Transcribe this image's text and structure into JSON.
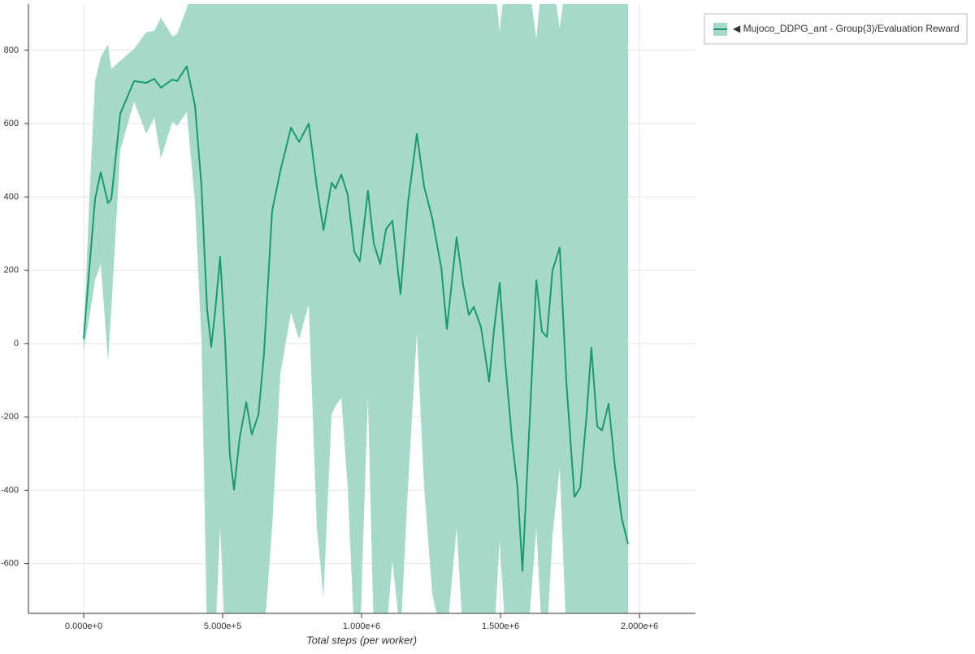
{
  "chart_data": {
    "type": "line",
    "xlabel": "Total steps (per worker)",
    "x": [
      0,
      20468,
      40935,
      61400,
      87700,
      99400,
      131600,
      181300,
      225000,
      254000,
      278000,
      319000,
      336000,
      371000,
      400600,
      424000,
      444000,
      459000,
      474000,
      491000,
      509000,
      526000,
      541000,
      561000,
      585000,
      605000,
      629000,
      649000,
      678000,
      708000,
      746000,
      775000,
      810000,
      839000,
      863000,
      892000,
      906000,
      927000,
      950000,
      974000,
      994000,
      1023000,
      1044000,
      1067000,
      1088000,
      1111000,
      1140000,
      1167000,
      1199000,
      1225000,
      1254000,
      1287000,
      1307000,
      1342000,
      1365000,
      1386000,
      1404000,
      1430000,
      1459000,
      1477000,
      1497000,
      1518000,
      1541000,
      1561000,
      1579000,
      1599000,
      1629000,
      1649000,
      1667000,
      1687000,
      1713000,
      1737000,
      1766000,
      1787000,
      1810000,
      1827000,
      1848000,
      1865000,
      1889000,
      1912000,
      1936000,
      1959000
    ],
    "series": [
      {
        "name": "◀ Mujoco_DDPG_ant - Group(3)/Evaluation Reward",
        "color": "#1a9a6c",
        "band_color": "#a6d9ca",
        "values": [
          13,
          206,
          394,
          467,
          383,
          394,
          627,
          716,
          711,
          722,
          698,
          720,
          716,
          756,
          649,
          428,
          95,
          -9,
          95,
          237,
          7,
          -304,
          -399,
          -259,
          -160,
          -248,
          -193,
          -27,
          361,
          472,
          589,
          550,
          600,
          428,
          310,
          439,
          423,
          461,
          406,
          250,
          224,
          417,
          273,
          217,
          312,
          335,
          135,
          383,
          572,
          428,
          343,
          206,
          40,
          290,
          162,
          78,
          100,
          44,
          -104,
          40,
          166,
          -60,
          -259,
          -392,
          -620,
          -304,
          173,
          33,
          18,
          199,
          262,
          -104,
          -419,
          -392,
          -193,
          -11,
          -226,
          -237,
          -164,
          -337,
          -476,
          -547
        ],
        "lower": [
          -20,
          73,
          173,
          217,
          -49,
          95,
          527,
          660,
          572,
          616,
          505,
          605,
          594,
          632,
          383,
          7,
          -800,
          -800,
          -800,
          -499,
          -800,
          -800,
          -800,
          -800,
          -800,
          -800,
          -800,
          -800,
          -503,
          -82,
          84,
          11,
          106,
          -503,
          -691,
          -193,
          -171,
          -148,
          -392,
          -800,
          -800,
          -148,
          -800,
          -800,
          -800,
          -592,
          -800,
          -392,
          29,
          -392,
          -680,
          -800,
          -800,
          -503,
          -800,
          -800,
          -800,
          -800,
          -800,
          -800,
          -536,
          -800,
          -800,
          -800,
          -800,
          -800,
          -503,
          -800,
          -800,
          -525,
          -337,
          -800,
          -800,
          -800,
          -800,
          -800,
          -800,
          -800,
          -800,
          -800,
          -800,
          -800
        ],
        "upper": [
          10,
          400,
          716,
          782,
          816,
          749,
          771,
          804,
          849,
          853,
          889,
          838,
          844,
          915,
          1000,
          1000,
          1000,
          1000,
          1000,
          1000,
          1000,
          1000,
          1000,
          1000,
          1000,
          1000,
          1000,
          1000,
          1000,
          1000,
          1000,
          1000,
          1000,
          1000,
          1000,
          1000,
          1000,
          1000,
          1000,
          1000,
          1000,
          1000,
          1000,
          1000,
          1000,
          1000,
          1000,
          1000,
          1000,
          1000,
          1000,
          1000,
          1000,
          1000,
          1000,
          1000,
          1000,
          1000,
          1000,
          1000,
          849,
          1000,
          1000,
          1000,
          1000,
          1000,
          831,
          1000,
          1000,
          1000,
          860,
          1000,
          1000,
          1000,
          1000,
          1000,
          1000,
          1000,
          1000,
          1000,
          1000,
          1000
        ]
      }
    ],
    "xlim": [
      -198830,
      2201700
    ],
    "ylim": [
      -736,
      926
    ],
    "xticks": [
      {
        "value": 0,
        "label": "0.000e+0"
      },
      {
        "value": 500000,
        "label": "5.000e+5"
      },
      {
        "value": 1000000,
        "label": "1.000e+6"
      },
      {
        "value": 1500000,
        "label": "1.500e+6"
      },
      {
        "value": 2000000,
        "label": "2.000e+6"
      }
    ],
    "yticks": [
      -600,
      -400,
      -200,
      0,
      200,
      400,
      600,
      800
    ],
    "grid": true,
    "legend": "outside-right"
  }
}
